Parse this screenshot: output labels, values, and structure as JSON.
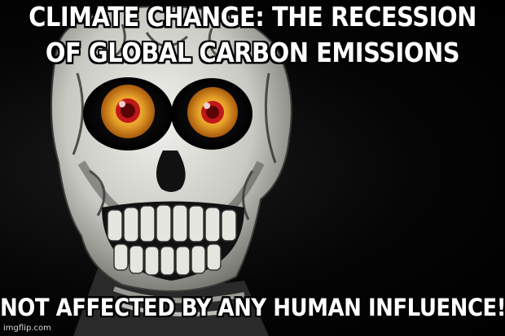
{
  "meme": {
    "top_text_line1": "CLIMATE CHANGE: THE RECESSION",
    "top_text_line2": "OF GLOBAL CARBON EMISSIONS",
    "bottom_text": "NOT AFFECTED BY ANY HUMAN INFLUENCE!",
    "watermark": "imgflip.com",
    "image_subject": "skeleton-puppet-face",
    "colors": {
      "background": "#000000",
      "skull": "#d9d9d4",
      "eye_iris": "#d98a1a",
      "eye_pupil_ring": "#c01818",
      "caption_text": "#ffffff"
    }
  }
}
